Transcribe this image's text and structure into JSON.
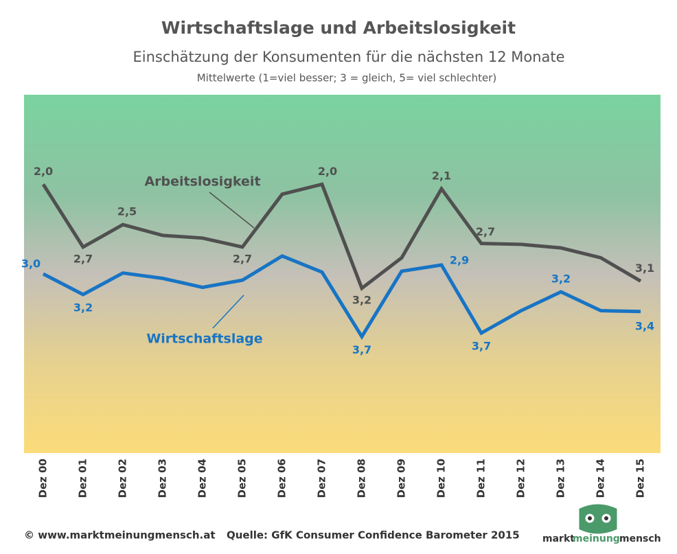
{
  "chart_data": {
    "type": "line",
    "title": "Wirtschaftslage und Arbeitslosigkeit",
    "subtitle": "Einschätzung der Konsumenten für die nächsten 12 Monate",
    "note": "Mittelwerte (1=viel besser; 3 = gleich, 5= viel schlechter)",
    "categories": [
      "Dez 00",
      "Dez 01",
      "Dez 02",
      "Dez 03",
      "Dez 04",
      "Dez 05",
      "Dez 06",
      "Dez 07",
      "Dez 08",
      "Dez 09",
      "Dez 10",
      "Dez 11",
      "Dez 12",
      "Dez 13",
      "Dez 14",
      "Dez 15"
    ],
    "ylim": [
      1,
      5
    ],
    "y_inverted": true,
    "series": [
      {
        "name": "Arbeitslosigkeit",
        "color": "#505050",
        "values": [
          2.0,
          2.7,
          2.45,
          2.57,
          2.6,
          2.7,
          2.11,
          2.0,
          3.16,
          2.82,
          2.05,
          2.66,
          2.67,
          2.71,
          2.82,
          3.08
        ],
        "value_labels": [
          "2,0",
          "2,7",
          "2,5",
          null,
          null,
          "2,7",
          null,
          "2,0",
          "3,2",
          null,
          "2,1",
          "2,7",
          null,
          null,
          null,
          "3,1"
        ]
      },
      {
        "name": "Wirtschaftslage",
        "color": "#1874c4",
        "values": [
          3.0,
          3.23,
          2.99,
          3.05,
          3.15,
          3.07,
          2.8,
          2.98,
          3.7,
          2.97,
          2.9,
          3.66,
          3.41,
          3.2,
          3.41,
          3.42
        ],
        "value_labels": [
          "3,0",
          "3,2",
          null,
          null,
          null,
          null,
          null,
          null,
          "3,7",
          null,
          "2,9",
          "3,7",
          null,
          "3,2",
          null,
          "3,4"
        ]
      }
    ],
    "footer_left": "© www.marktmeinungmensch.at",
    "footer_source": "Quelle: GfK Consumer Confidence Barometer 2015",
    "logo": [
      "markt",
      "meinung",
      "mensch"
    ]
  }
}
